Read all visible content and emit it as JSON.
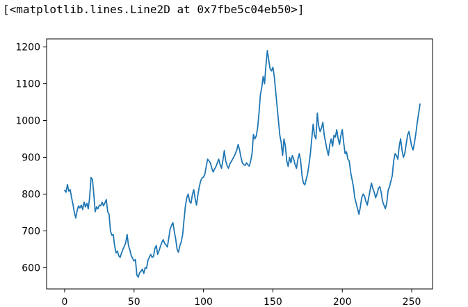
{
  "output": {
    "repr": "[<matplotlib.lines.Line2D at 0x7fbe5c04eb50>]"
  },
  "chart_data": {
    "type": "line",
    "title": "",
    "xlabel": "",
    "ylabel": "",
    "xlim": [
      -13,
      265
    ],
    "ylim": [
      542,
      1222
    ],
    "xticks": [
      0,
      50,
      100,
      150,
      200,
      250
    ],
    "yticks": [
      600,
      700,
      800,
      900,
      1000,
      1100,
      1200
    ],
    "grid": false,
    "line_color": "#1f77b4",
    "series": [
      {
        "values": [
          810,
          805,
          826,
          808,
          812,
          790,
          772,
          750,
          735,
          755,
          768,
          762,
          770,
          758,
          778,
          765,
          775,
          760,
          790,
          845,
          840,
          800,
          752,
          765,
          760,
          770,
          768,
          778,
          768,
          776,
          785,
          752,
          745,
          700,
          688,
          690,
          660,
          640,
          645,
          632,
          628,
          640,
          650,
          658,
          668,
          690,
          660,
          648,
          632,
          625,
          618,
          622,
          580,
          574,
          586,
          590,
          596,
          584,
          600,
          598,
          620,
          628,
          636,
          628,
          630,
          652,
          660,
          636,
          646,
          658,
          668,
          676,
          666,
          662,
          656,
          680,
          705,
          715,
          722,
          698,
          678,
          650,
          642,
          660,
          670,
          690,
          730,
          768,
          790,
          800,
          780,
          775,
          798,
          812,
          788,
          770,
          798,
          820,
          836,
          844,
          846,
          854,
          875,
          895,
          890,
          885,
          870,
          860,
          868,
          875,
          885,
          895,
          880,
          870,
          892,
          918,
          890,
          878,
          870,
          882,
          888,
          895,
          902,
          910,
          920,
          935,
          920,
          900,
          885,
          880,
          878,
          885,
          880,
          876,
          890,
          910,
          962,
          950,
          958,
          980,
          1020,
          1070,
          1090,
          1120,
          1100,
          1150,
          1190,
          1165,
          1140,
          1135,
          1145,
          1120,
          1080,
          1040,
          1000,
          960,
          940,
          905,
          950,
          930,
          890,
          875,
          900,
          885,
          905,
          895,
          880,
          870,
          895,
          910,
          890,
          850,
          830,
          825,
          840,
          855,
          880,
          910,
          950,
          990,
          960,
          950,
          1020,
          985,
          970,
          980,
          995,
          960,
          940,
          920,
          905,
          935,
          950,
          930,
          960,
          955,
          975,
          950,
          935,
          960,
          975,
          940,
          910,
          915,
          895,
          890,
          860,
          840,
          820,
          790,
          775,
          760,
          745,
          765,
          790,
          800,
          795,
          780,
          770,
          790,
          810,
          830,
          815,
          805,
          790,
          800,
          815,
          820,
          805,
          780,
          770,
          760,
          775,
          810,
          820,
          835,
          850,
          890,
          910,
          905,
          895,
          930,
          950,
          920,
          900,
          910,
          935,
          960,
          970,
          950,
          930,
          920,
          940,
          965,
          995,
          1020,
          1045
        ]
      }
    ]
  }
}
